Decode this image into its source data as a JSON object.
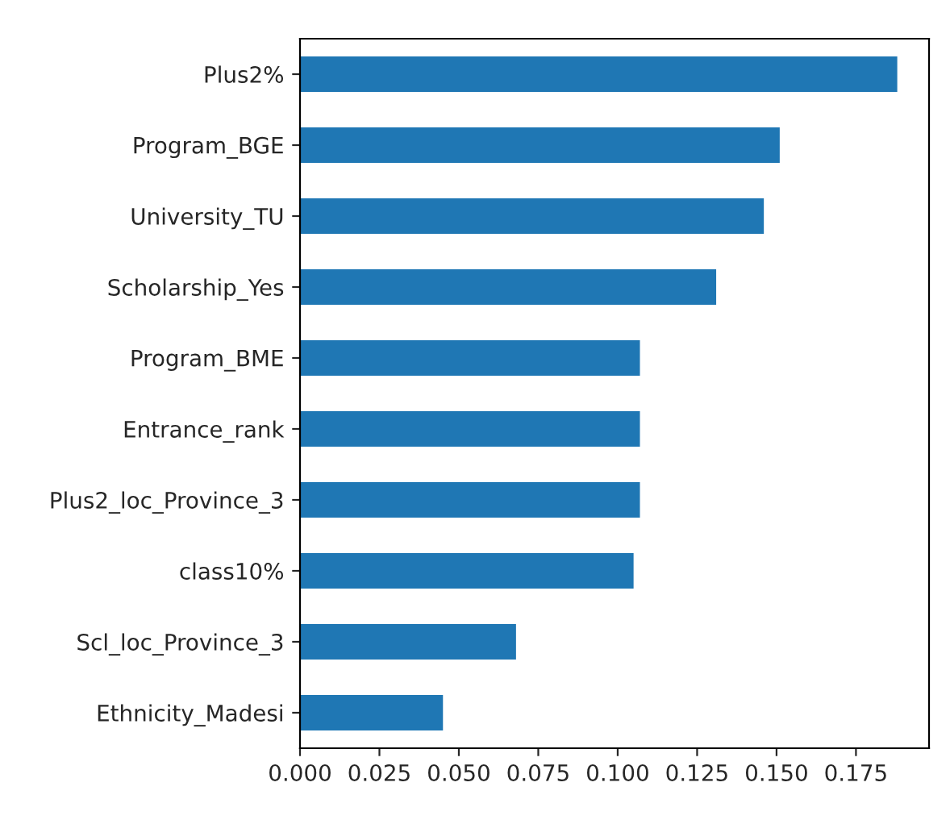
{
  "chart_data": {
    "type": "bar",
    "orientation": "horizontal",
    "categories": [
      "Plus2%",
      "Program_BGE",
      "University_TU",
      "Scholarship_Yes",
      "Program_BME",
      "Entrance_rank",
      "Plus2_loc_Province_3",
      "class10%",
      "Scl_loc_Province_3",
      "Ethnicity_Madesi"
    ],
    "values": [
      0.188,
      0.151,
      0.146,
      0.131,
      0.107,
      0.107,
      0.107,
      0.105,
      0.068,
      0.045
    ],
    "color": "#1f77b4",
    "xlim": [
      0,
      0.198
    ],
    "xticks": [
      {
        "value": 0,
        "label": "0.000"
      },
      {
        "value": 0.025,
        "label": "0.025"
      },
      {
        "value": 0.05,
        "label": "0.050"
      },
      {
        "value": 0.075,
        "label": "0.075"
      },
      {
        "value": 0.1,
        "label": "0.100"
      },
      {
        "value": 0.125,
        "label": "0.125"
      },
      {
        "value": 0.15,
        "label": "0.150"
      },
      {
        "value": 0.175,
        "label": "0.175"
      }
    ],
    "grid": false,
    "legend": false
  }
}
